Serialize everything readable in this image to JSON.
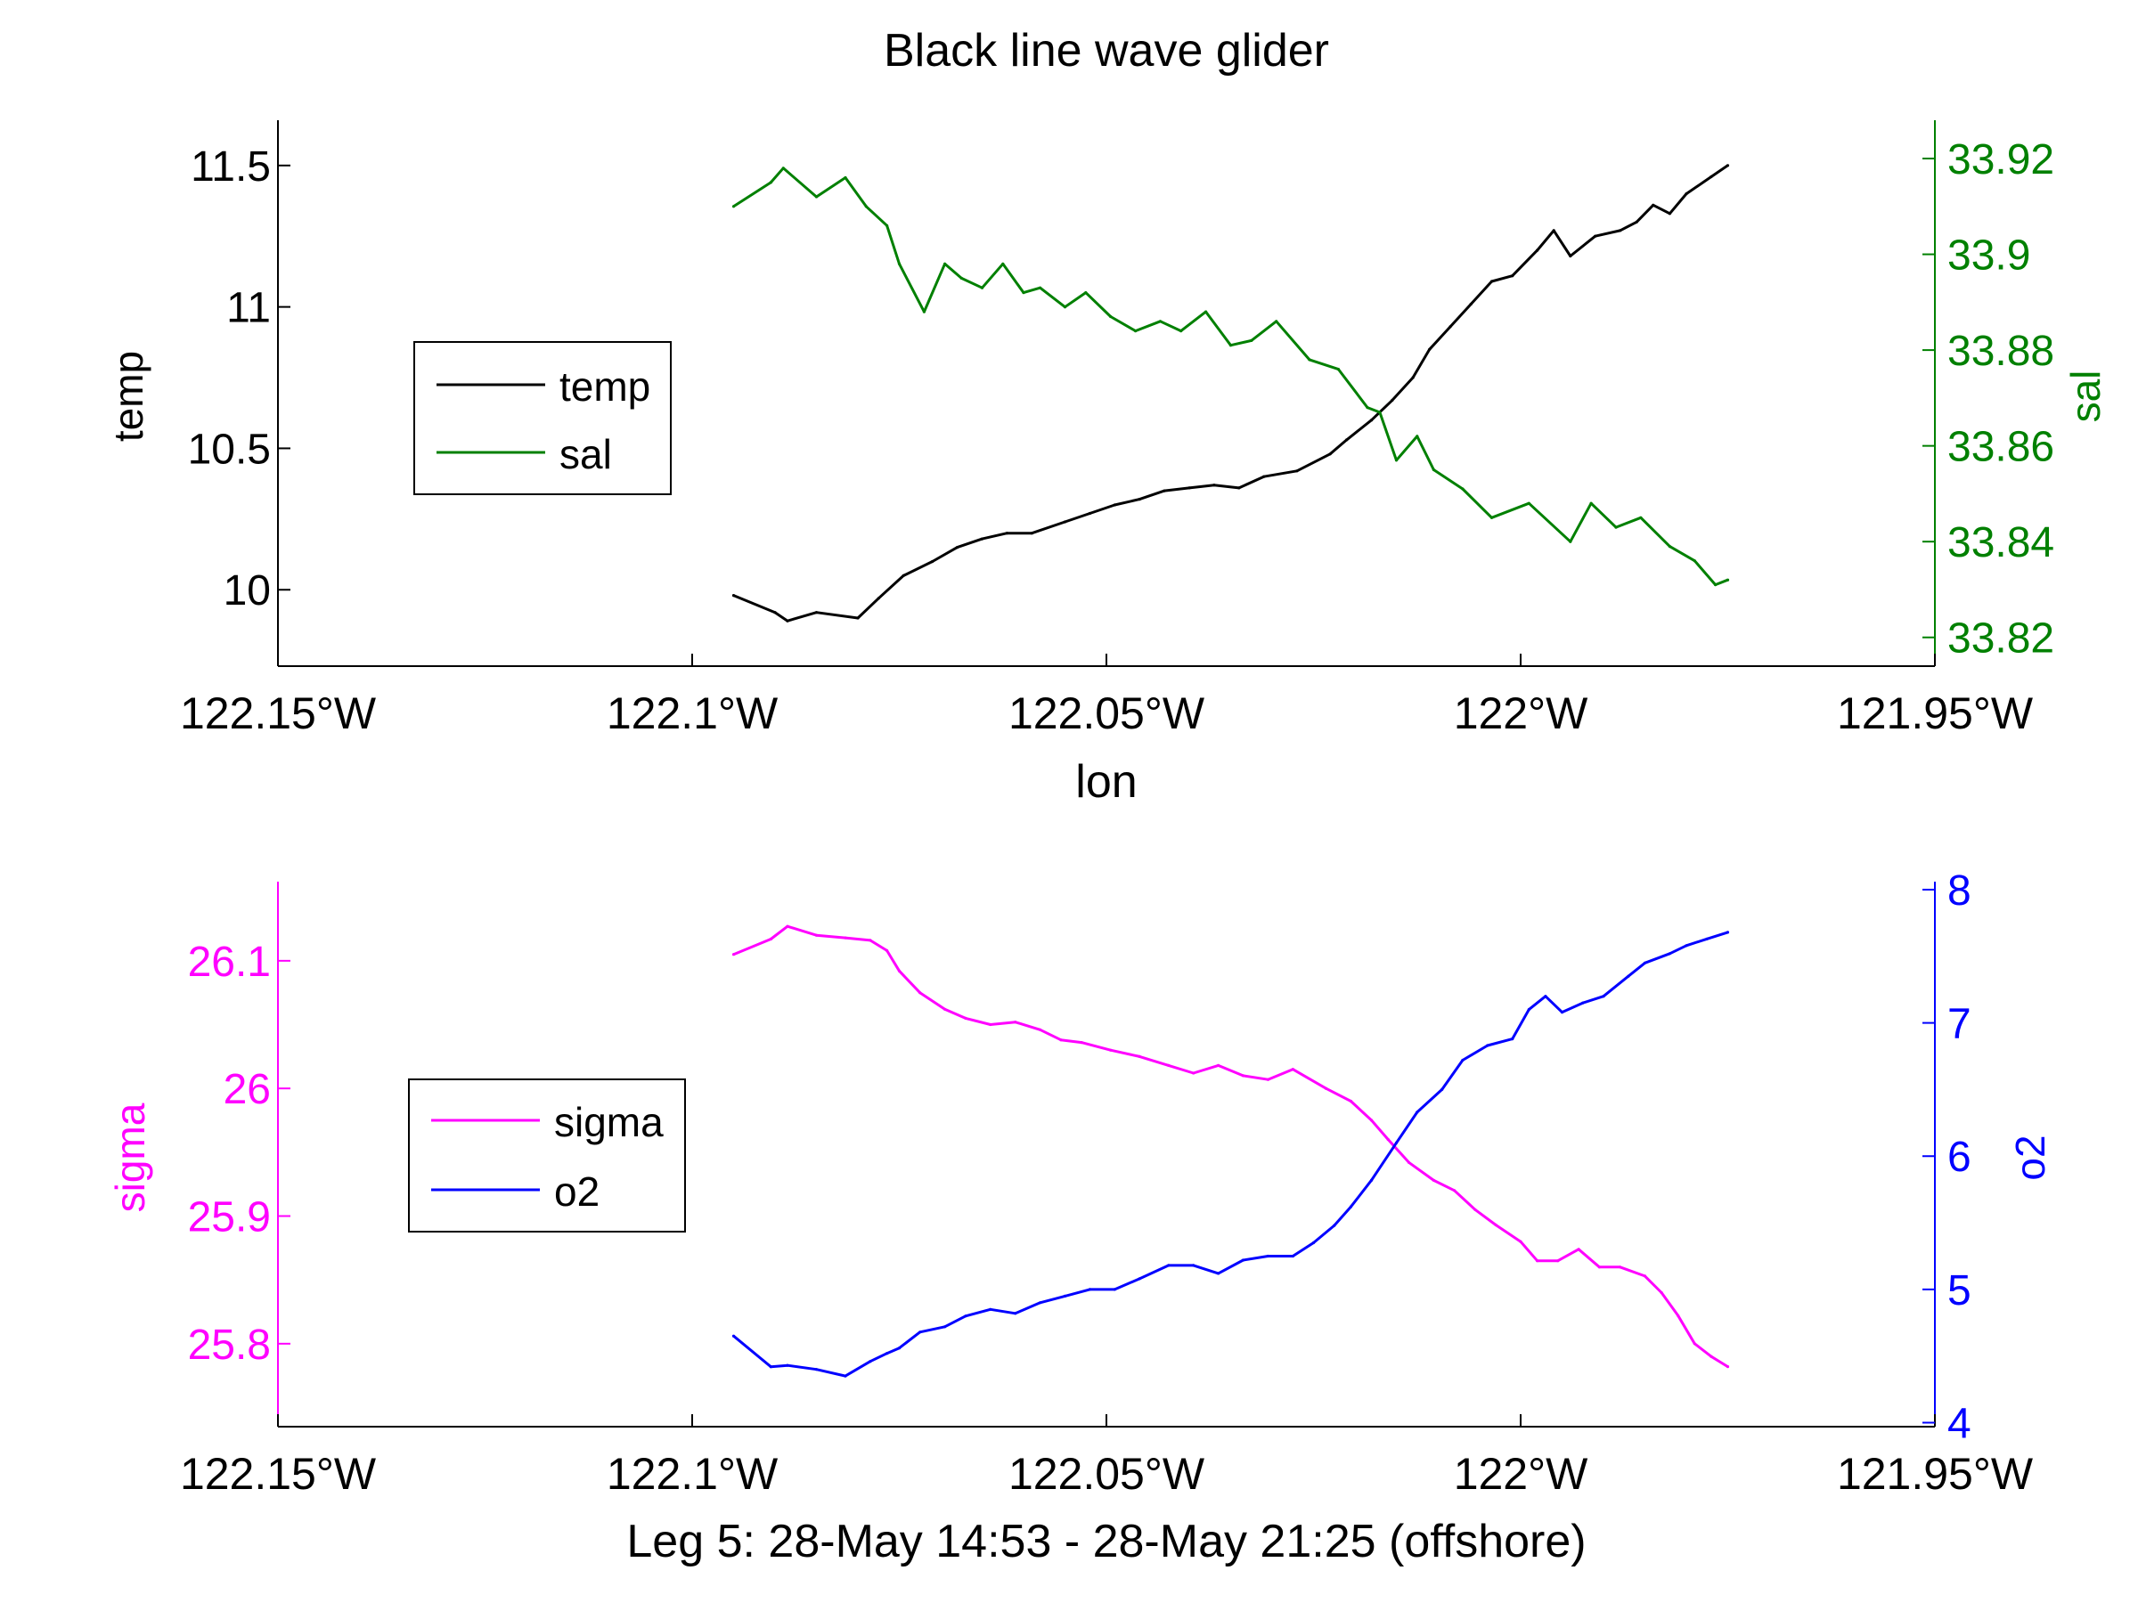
{
  "title": "Black line wave glider",
  "chart_data": [
    {
      "type": "line",
      "xlabel": "lon",
      "xlim": [
        -122.15,
        -121.95
      ],
      "xticks": [
        -122.15,
        -122.1,
        -122.05,
        -122.0,
        -121.95
      ],
      "xtick_labels": [
        "122.15°W",
        "122.1°W",
        "122.05°W",
        "122°W",
        "121.95°W"
      ],
      "left_axis": {
        "label": "temp",
        "color": "#000000",
        "ylim": [
          9.73,
          11.66
        ],
        "ticks": [
          10,
          10.5,
          11,
          11.5
        ],
        "tick_labels": [
          "10",
          "10.5",
          "11",
          "11.5"
        ]
      },
      "right_axis": {
        "label": "sal",
        "color": "#008000",
        "ylim": [
          33.814,
          33.928
        ],
        "ticks": [
          33.82,
          33.84,
          33.86,
          33.88,
          33.9,
          33.92
        ],
        "tick_labels": [
          "33.82",
          "33.84",
          "33.86",
          "33.88",
          "33.9",
          "33.92"
        ]
      },
      "legend": {
        "placement": "middle-left",
        "entries": [
          "temp",
          "sal"
        ]
      },
      "series": [
        {
          "name": "temp",
          "axis": "left",
          "color": "#000000",
          "x": [
            -122.095,
            -122.09,
            -122.0885,
            -122.085,
            -122.08,
            -122.0775,
            -122.0745,
            -122.071,
            -122.068,
            -122.065,
            -122.062,
            -122.059,
            -122.055,
            -122.052,
            -122.049,
            -122.046,
            -122.043,
            -122.04,
            -122.037,
            -122.034,
            -122.031,
            -122.027,
            -122.023,
            -122.021,
            -122.018,
            -122.0155,
            -122.013,
            -122.011,
            -122.0085,
            -122.006,
            -122.0035,
            -122.001,
            -121.998,
            -121.996,
            -121.994,
            -121.991,
            -121.988,
            -121.986,
            -121.984,
            -121.982,
            -121.98,
            -121.977,
            -121.975
          ],
          "y": [
            9.98,
            9.92,
            9.89,
            9.92,
            9.9,
            9.97,
            10.05,
            10.1,
            10.15,
            10.18,
            10.2,
            10.2,
            10.24,
            10.27,
            10.3,
            10.32,
            10.35,
            10.36,
            10.37,
            10.36,
            10.4,
            10.42,
            10.48,
            10.53,
            10.6,
            10.67,
            10.75,
            10.85,
            10.93,
            11.01,
            11.09,
            11.11,
            11.2,
            11.27,
            11.18,
            11.25,
            11.27,
            11.3,
            11.36,
            11.33,
            11.4,
            11.46,
            11.5
          ]
        },
        {
          "name": "sal",
          "axis": "right",
          "color": "#008000",
          "x": [
            -122.095,
            -122.0905,
            -122.089,
            -122.085,
            -122.0815,
            -122.079,
            -122.0765,
            -122.075,
            -122.072,
            -122.0695,
            -122.0675,
            -122.065,
            -122.0625,
            -122.06,
            -122.058,
            -122.055,
            -122.0525,
            -122.0495,
            -122.0465,
            -122.0435,
            -122.041,
            -122.038,
            -122.035,
            -122.0325,
            -122.0295,
            -122.0255,
            -122.022,
            -122.0185,
            -122.017,
            -122.015,
            -122.0125,
            -122.0105,
            -122.007,
            -122.0035,
            -121.999,
            -121.994,
            -121.9915,
            -121.9885,
            -121.9855,
            -121.982,
            -121.979,
            -121.9765,
            -121.975
          ],
          "y": [
            33.91,
            33.915,
            33.918,
            33.912,
            33.916,
            33.91,
            33.906,
            33.898,
            33.888,
            33.898,
            33.895,
            33.893,
            33.898,
            33.892,
            33.893,
            33.889,
            33.892,
            33.887,
            33.884,
            33.886,
            33.884,
            33.888,
            33.881,
            33.882,
            33.886,
            33.878,
            33.876,
            33.868,
            33.867,
            33.857,
            33.862,
            33.855,
            33.851,
            33.845,
            33.848,
            33.84,
            33.848,
            33.843,
            33.845,
            33.839,
            33.836,
            33.831,
            33.832
          ]
        }
      ]
    },
    {
      "type": "line",
      "xlabel": "Leg 5: 28-May 14:53 - 28-May 21:25 (offshore)",
      "xlim": [
        -122.15,
        -121.95
      ],
      "xticks": [
        -122.15,
        -122.1,
        -122.05,
        -122.0,
        -121.95
      ],
      "xtick_labels": [
        "122.15°W",
        "122.1°W",
        "122.05°W",
        "122°W",
        "121.95°W"
      ],
      "left_axis": {
        "label": "sigma",
        "color": "#ff00ff",
        "ylim": [
          25.735,
          26.162
        ],
        "ticks": [
          25.8,
          25.9,
          26,
          26.1
        ],
        "tick_labels": [
          "25.8",
          "25.9",
          "26",
          "26.1"
        ]
      },
      "right_axis": {
        "label": "o2",
        "color": "#0000ff",
        "ylim": [
          3.97,
          8.06
        ],
        "ticks": [
          4,
          5,
          6,
          7,
          8
        ],
        "tick_labels": [
          "4",
          "5",
          "6",
          "7",
          "8"
        ]
      },
      "legend": {
        "placement": "middle-left",
        "entries": [
          "sigma",
          "o2"
        ]
      },
      "series": [
        {
          "name": "sigma",
          "axis": "left",
          "color": "#ff00ff",
          "x": [
            -122.095,
            -122.0905,
            -122.0885,
            -122.085,
            -122.0815,
            -122.0785,
            -122.0765,
            -122.075,
            -122.0725,
            -122.0695,
            -122.067,
            -122.064,
            -122.061,
            -122.058,
            -122.0555,
            -122.053,
            -122.0495,
            -122.046,
            -122.0425,
            -122.0395,
            -122.0365,
            -122.0335,
            -122.0305,
            -122.0275,
            -122.0235,
            -122.0205,
            -122.018,
            -122.016,
            -122.0135,
            -122.0105,
            -122.008,
            -122.0055,
            -122.003,
            -122.0,
            -121.998,
            -121.9955,
            -121.993,
            -121.9905,
            -121.988,
            -121.985,
            -121.983,
            -121.981,
            -121.979,
            -121.977,
            -121.975
          ],
          "y": [
            26.105,
            26.117,
            26.127,
            26.12,
            26.118,
            26.116,
            26.108,
            26.092,
            26.075,
            26.062,
            26.055,
            26.05,
            26.052,
            26.046,
            26.038,
            26.036,
            26.03,
            26.025,
            26.018,
            26.012,
            26.018,
            26.01,
            26.007,
            26.015,
            26.0,
            25.99,
            25.975,
            25.96,
            25.942,
            25.928,
            25.92,
            25.905,
            25.893,
            25.88,
            25.865,
            25.865,
            25.874,
            25.86,
            25.86,
            25.853,
            25.84,
            25.822,
            25.8,
            25.79,
            25.782
          ]
        },
        {
          "name": "o2",
          "axis": "right",
          "color": "#0000ff",
          "x": [
            -122.095,
            -122.0905,
            -122.0885,
            -122.085,
            -122.0815,
            -122.0785,
            -122.0765,
            -122.075,
            -122.0725,
            -122.0695,
            -122.067,
            -122.064,
            -122.061,
            -122.058,
            -122.055,
            -122.052,
            -122.049,
            -122.046,
            -122.0425,
            -122.0395,
            -122.0365,
            -122.0335,
            -122.0305,
            -122.0275,
            -122.025,
            -122.0225,
            -122.0205,
            -122.018,
            -122.015,
            -122.0125,
            -122.0095,
            -122.007,
            -122.004,
            -122.001,
            -121.999,
            -121.997,
            -121.995,
            -121.9925,
            -121.99,
            -121.987,
            -121.985,
            -121.982,
            -121.98,
            -121.9775,
            -121.975
          ],
          "y": [
            4.65,
            4.42,
            4.43,
            4.4,
            4.35,
            4.46,
            4.52,
            4.56,
            4.68,
            4.72,
            4.8,
            4.85,
            4.82,
            4.9,
            4.95,
            5.0,
            5.0,
            5.08,
            5.18,
            5.18,
            5.12,
            5.22,
            5.25,
            5.25,
            5.35,
            5.48,
            5.62,
            5.82,
            6.1,
            6.33,
            6.5,
            6.72,
            6.83,
            6.88,
            7.1,
            7.2,
            7.08,
            7.15,
            7.2,
            7.35,
            7.45,
            7.52,
            7.58,
            7.63,
            7.68
          ]
        }
      ]
    }
  ]
}
